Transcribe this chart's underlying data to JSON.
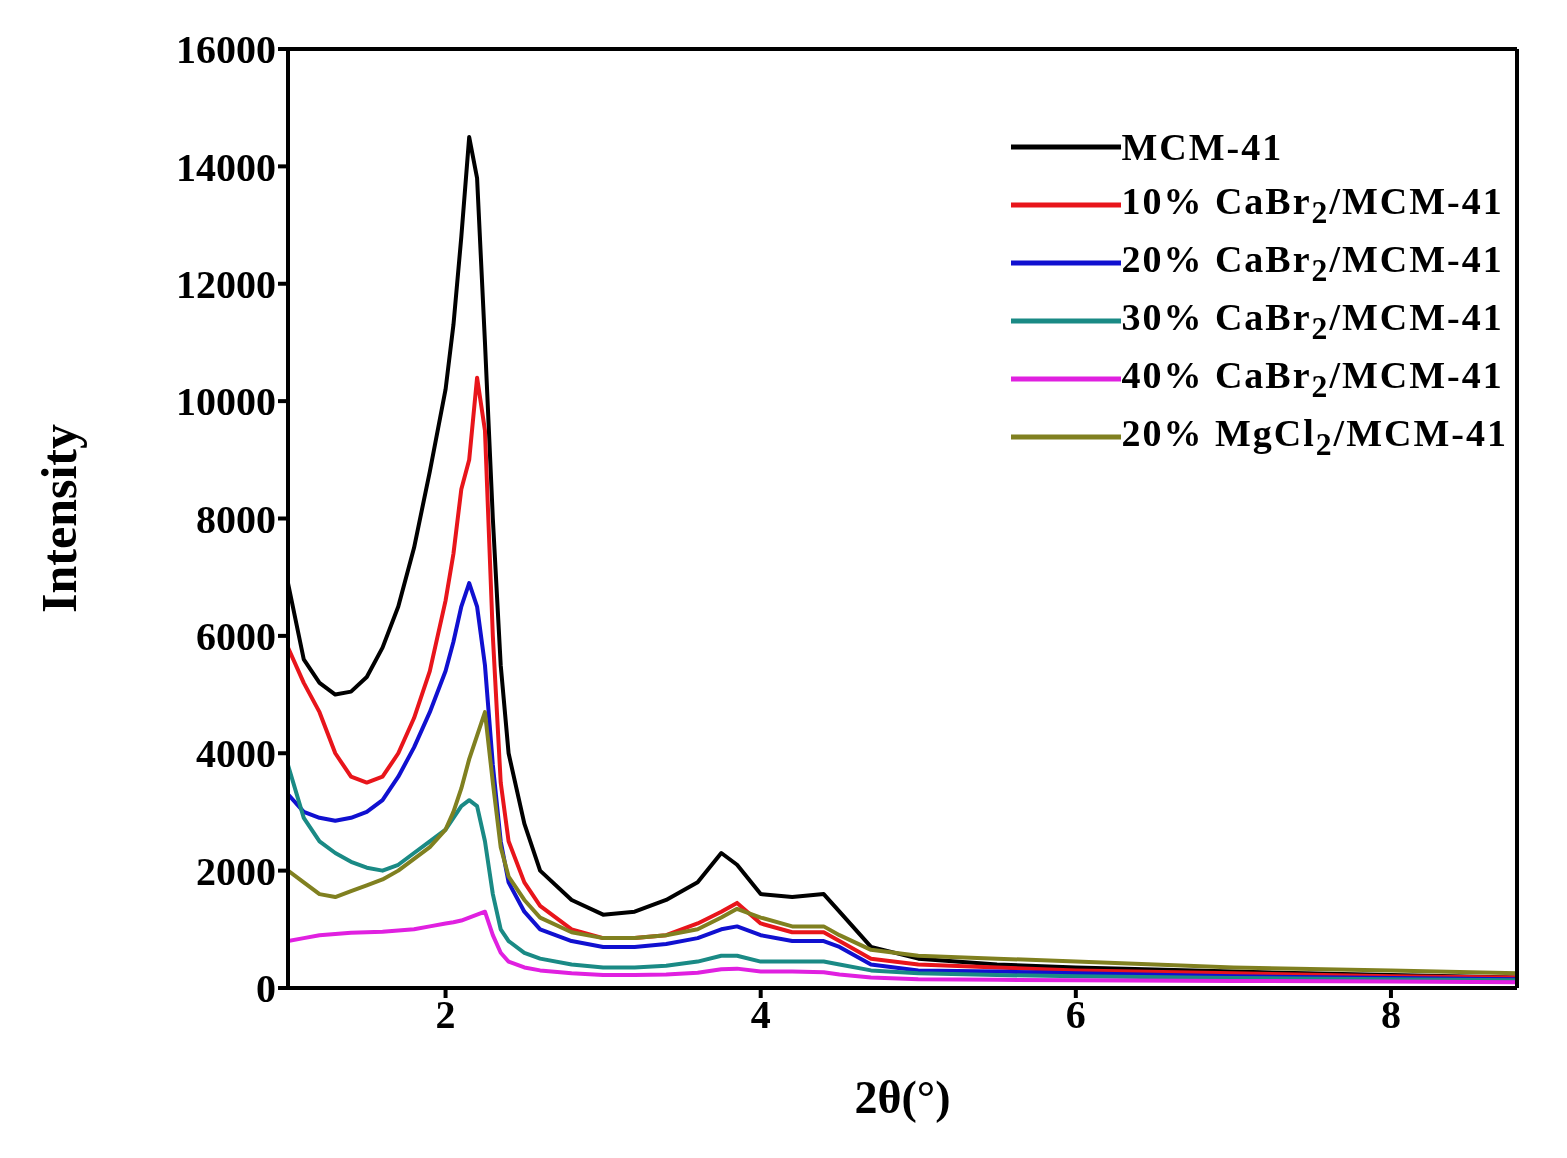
{
  "chart_data": {
    "type": "line",
    "xlabel": "2θ(°)",
    "ylabel": "Intensity",
    "xlim": [
      1,
      8.8
    ],
    "xticks": [
      2,
      4,
      6,
      8
    ],
    "ylim": [
      0,
      16000
    ],
    "yticks": [
      0,
      2000,
      4000,
      6000,
      8000,
      10000,
      12000,
      14000,
      16000
    ],
    "legend": "top right",
    "marker": "none",
    "line_style": "solid",
    "x": [
      1.0,
      1.1,
      1.2,
      1.3,
      1.4,
      1.5,
      1.6,
      1.7,
      1.8,
      1.9,
      2.0,
      2.05,
      2.1,
      2.15,
      2.2,
      2.25,
      2.3,
      2.35,
      2.4,
      2.5,
      2.6,
      2.8,
      3.0,
      3.2,
      3.4,
      3.6,
      3.75,
      3.85,
      4.0,
      4.2,
      4.4,
      4.5,
      4.7,
      5.0,
      5.5,
      6,
      7,
      8,
      8.8
    ],
    "series": [
      {
        "name": "MCM-41",
        "color": "#000000",
        "values": [
          6900,
          5600,
          5200,
          5000,
          5050,
          5300,
          5800,
          6500,
          7500,
          8800,
          10200,
          11300,
          12800,
          14500,
          13800,
          11000,
          8000,
          5500,
          4000,
          2800,
          2000,
          1500,
          1250,
          1300,
          1500,
          1800,
          2300,
          2100,
          1600,
          1550,
          1600,
          1300,
          700,
          500,
          400,
          350,
          280,
          220,
          180
        ]
      },
      {
        "name": "10% CaBr$_{2}$/MCM-41",
        "color": "#e8151b",
        "values": [
          5800,
          5200,
          4700,
          4000,
          3600,
          3500,
          3600,
          4000,
          4600,
          5400,
          6600,
          7400,
          8500,
          9000,
          10400,
          9500,
          6000,
          3500,
          2500,
          1800,
          1400,
          1000,
          850,
          850,
          900,
          1100,
          1300,
          1450,
          1100,
          950,
          950,
          800,
          500,
          400,
          350,
          300,
          250,
          200,
          180
        ]
      },
      {
        "name": "20% CaBr$_{2}$/MCM-41",
        "color": "#1010d0",
        "values": [
          3300,
          3000,
          2900,
          2850,
          2900,
          3000,
          3200,
          3600,
          4100,
          4700,
          5400,
          5900,
          6500,
          6900,
          6500,
          5500,
          3800,
          2500,
          1800,
          1300,
          1000,
          800,
          700,
          700,
          750,
          850,
          1000,
          1050,
          900,
          800,
          800,
          700,
          400,
          300,
          280,
          250,
          200,
          170,
          150
        ]
      },
      {
        "name": "30% CaBr$_{2}$/MCM-41",
        "color": "#1a8a85",
        "values": [
          3800,
          2900,
          2500,
          2300,
          2150,
          2050,
          2000,
          2100,
          2300,
          2500,
          2700,
          2900,
          3100,
          3200,
          3100,
          2500,
          1600,
          1000,
          800,
          600,
          500,
          400,
          350,
          350,
          380,
          450,
          550,
          550,
          450,
          450,
          450,
          400,
          300,
          250,
          220,
          200,
          170,
          150,
          130
        ]
      },
      {
        "name": "40% CaBr$_{2}$/MCM-41",
        "color": "#e020e0",
        "values": [
          800,
          850,
          900,
          920,
          940,
          950,
          960,
          980,
          1000,
          1050,
          1100,
          1120,
          1150,
          1200,
          1250,
          1300,
          900,
          600,
          450,
          350,
          300,
          250,
          220,
          220,
          230,
          260,
          320,
          330,
          280,
          280,
          270,
          230,
          180,
          150,
          140,
          130,
          120,
          110,
          100
        ]
      },
      {
        "name": "20% MgCl$_{2}$/MCM-41",
        "color": "#808020",
        "values": [
          2000,
          1800,
          1600,
          1550,
          1650,
          1750,
          1850,
          2000,
          2200,
          2400,
          2700,
          3000,
          3400,
          3900,
          4300,
          4700,
          3500,
          2400,
          1900,
          1500,
          1200,
          950,
          850,
          850,
          900,
          1000,
          1200,
          1350,
          1200,
          1050,
          1050,
          900,
          650,
          550,
          500,
          450,
          350,
          300,
          250
        ]
      }
    ]
  }
}
